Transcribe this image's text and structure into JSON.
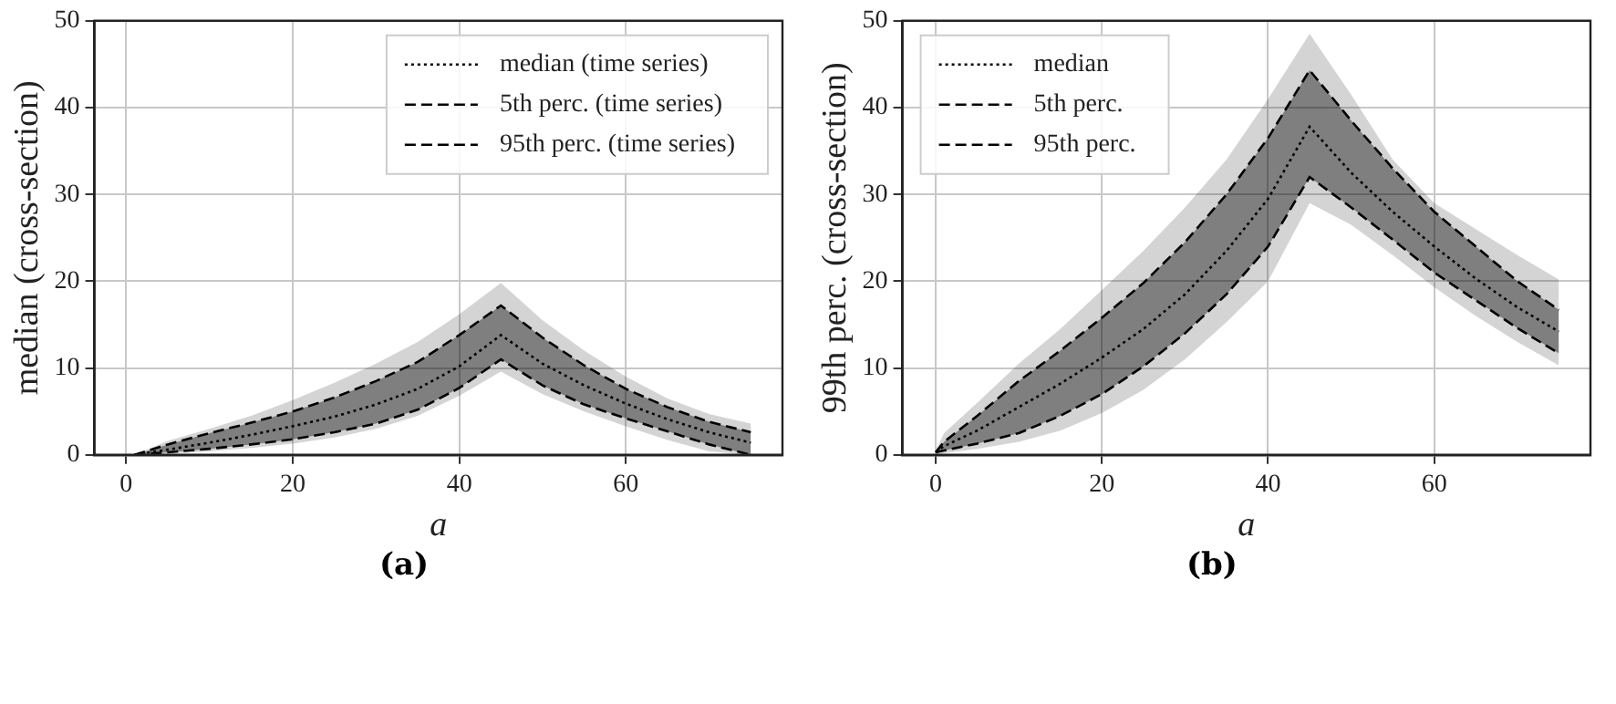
{
  "chart_data": [
    {
      "type": "line",
      "xlabel": "a",
      "ylabel": "median (cross-section)",
      "xlim": [
        -3.8,
        78.8
      ],
      "ylim": [
        0,
        50
      ],
      "xticks": [
        0,
        20,
        40,
        60
      ],
      "yticks": [
        0,
        10,
        20,
        30,
        40,
        50
      ],
      "grid": true,
      "legend": "top right",
      "marker": "none",
      "annotations": [
        "(a)"
      ],
      "x": [
        1,
        5,
        10,
        15,
        20,
        25,
        30,
        35,
        40,
        45,
        50,
        55,
        60,
        65,
        70,
        75
      ],
      "series": [
        {
          "name": "median (time series)",
          "color": "#000000",
          "line_style": "dotted",
          "values": [
            0,
            0.6,
            1.4,
            2.3,
            3.3,
            4.4,
            5.8,
            7.6,
            10.2,
            13.8,
            10.5,
            8,
            5.9,
            4.1,
            2.6,
            1.4
          ],
          "lower": [
            0,
            0.3,
            0.7,
            1.2,
            1.8,
            2.6,
            3.6,
            5.2,
            7.7,
            11,
            8,
            5.8,
            4.2,
            2.7,
            1.2,
            0
          ],
          "upper": [
            0,
            1.2,
            2.5,
            3.7,
            5,
            6.6,
            8.5,
            10.7,
            13.8,
            17.2,
            13.5,
            10.3,
            7.6,
            5.5,
            3.8,
            2.6
          ]
        },
        {
          "name": "5th perc. (time series)",
          "color": "#000000",
          "line_style": "dashed",
          "values": [
            0,
            0.3,
            0.7,
            1.2,
            1.8,
            2.6,
            3.6,
            5.2,
            7.7,
            11,
            8,
            5.8,
            4.2,
            2.7,
            1.2,
            0
          ],
          "lower": [
            0,
            0.1,
            0.4,
            0.8,
            1.3,
            2,
            3,
            4.5,
            6.8,
            9.6,
            7,
            5,
            3.3,
            1.7,
            0.4,
            0
          ],
          "upper": [
            0,
            1.6,
            3,
            4.5,
            6.3,
            8.3,
            10.5,
            13,
            16.2,
            19.8,
            15.5,
            12,
            9,
            6.5,
            4.7,
            3.6
          ]
        },
        {
          "name": "95th perc. (time series)",
          "color": "#000000",
          "line_style": "dashed",
          "values": [
            0,
            1.2,
            2.5,
            3.7,
            5,
            6.6,
            8.5,
            10.7,
            13.8,
            17.2,
            13.5,
            10.3,
            7.6,
            5.5,
            3.8,
            2.6
          ]
        }
      ]
    },
    {
      "type": "line",
      "xlabel": "a",
      "ylabel": "99th perc. (cross-section)",
      "xlim": [
        -4,
        78.8
      ],
      "ylim": [
        0,
        50
      ],
      "xticks": [
        0,
        20,
        40,
        60
      ],
      "yticks": [
        0,
        10,
        20,
        30,
        40,
        50
      ],
      "grid": true,
      "legend": "top left",
      "marker": "none",
      "annotations": [
        "(b)"
      ],
      "x": [
        0,
        1,
        5,
        10,
        15,
        20,
        25,
        30,
        35,
        40,
        45,
        50,
        55,
        60,
        65,
        70,
        75
      ],
      "series": [
        {
          "name": "median",
          "color": "#000000",
          "line_style": "dotted",
          "values": [
            0.3,
            1,
            2.8,
            5.5,
            8.2,
            11.2,
            14.5,
            18.5,
            23.5,
            29.5,
            37.8,
            32.5,
            28,
            24,
            20.3,
            17,
            14.2
          ],
          "lower": [
            0.3,
            0.5,
            1.3,
            2.5,
            4.5,
            7,
            10.2,
            14,
            18.5,
            24,
            32,
            28.5,
            24.8,
            21,
            17.8,
            14.6,
            11.7
          ],
          "upper": [
            0.3,
            1.5,
            4.5,
            8.5,
            12,
            15.8,
            19.8,
            24.5,
            30,
            36.5,
            44.3,
            38.5,
            33,
            28,
            24,
            20,
            16.7
          ]
        },
        {
          "name": "5th perc.",
          "color": "#000000",
          "line_style": "dashed",
          "values": [
            0.3,
            0.5,
            1.3,
            2.5,
            4.5,
            7,
            10.2,
            14,
            18.5,
            24,
            32,
            28.5,
            24.8,
            21,
            17.8,
            14.6,
            11.7
          ],
          "lower": [
            0,
            0.2,
            0.7,
            1.5,
            2.8,
            4.8,
            7.5,
            11,
            15.3,
            20,
            29,
            26.5,
            23,
            19.3,
            16,
            13,
            10.3
          ],
          "upper": [
            0.5,
            2.5,
            6,
            10.5,
            14.5,
            19,
            23.5,
            28.5,
            34,
            41,
            48.5,
            41.5,
            34,
            29,
            26,
            23,
            20.2
          ]
        },
        {
          "name": "95th perc.",
          "color": "#000000",
          "line_style": "dashed",
          "values": [
            0.3,
            1.5,
            4.5,
            8.5,
            12,
            15.8,
            19.8,
            24.5,
            30,
            36.5,
            44.3,
            38.5,
            33,
            28,
            24,
            20,
            16.7
          ]
        }
      ]
    }
  ]
}
